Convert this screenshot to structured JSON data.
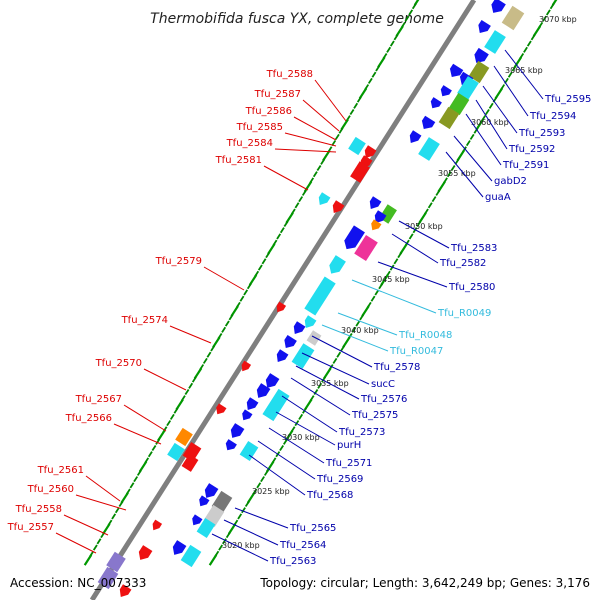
{
  "title": "Thermobifida fusca YX, complete genome",
  "accession": "Accession: NC_007333",
  "topology": "Topology: circular; Length: 3,642,249 bp; Genes: 3,176",
  "colors": {
    "backbone": "#7f7f7f",
    "tick_major": "#009900",
    "tick_minor": "#008800",
    "reverse_label": "#dd0000",
    "forward_label": "#0000aa",
    "rna_label": "#33bbdd",
    "cds_dark": "#1111ee",
    "cds_cyan": "#22ddee",
    "cds_red": "#ee1111",
    "cds_green": "#44bb22",
    "cds_olive": "#889922",
    "cds_khaki": "#c8bb88",
    "cds_pink": "#ee3399",
    "cds_orange": "#ff8800",
    "cds_gray": "#777777",
    "cds_lightgray": "#cccccc",
    "cds_lavender": "#8877cc"
  },
  "kbp_ticks": [
    {
      "label": "3070 kbp"
    },
    {
      "label": "3065 kbp"
    },
    {
      "label": "3060 kbp"
    },
    {
      "label": "3055 kbp"
    },
    {
      "label": "3050 kbp"
    },
    {
      "label": "3045 kbp"
    },
    {
      "label": "3040 kbp"
    },
    {
      "label": "3035 kbp"
    },
    {
      "label": "3030 kbp"
    },
    {
      "label": "3025 kbp"
    },
    {
      "label": "3020 kbp"
    }
  ],
  "reverse_genes": [
    {
      "label": "Tfu_2588"
    },
    {
      "label": "Tfu_2587"
    },
    {
      "label": "Tfu_2586"
    },
    {
      "label": "Tfu_2585"
    },
    {
      "label": "Tfu_2584"
    },
    {
      "label": "Tfu_2581"
    },
    {
      "label": "Tfu_2579"
    },
    {
      "label": "Tfu_2574"
    },
    {
      "label": "Tfu_2570"
    },
    {
      "label": "Tfu_2567"
    },
    {
      "label": "Tfu_2566"
    },
    {
      "label": "Tfu_2561"
    },
    {
      "label": "Tfu_2560"
    },
    {
      "label": "Tfu_2558"
    },
    {
      "label": "Tfu_2557"
    }
  ],
  "forward_genes": [
    {
      "label": "Tfu_2595"
    },
    {
      "label": "Tfu_2594"
    },
    {
      "label": "Tfu_2593"
    },
    {
      "label": "Tfu_2592"
    },
    {
      "label": "Tfu_2591"
    },
    {
      "label": "gabD2"
    },
    {
      "label": "guaA"
    },
    {
      "label": "Tfu_2583"
    },
    {
      "label": "Tfu_2582"
    },
    {
      "label": "Tfu_2580"
    },
    {
      "label": "Tfu_R0049",
      "rna": true
    },
    {
      "label": "Tfu_R0048",
      "rna": true
    },
    {
      "label": "Tfu_R0047",
      "rna": true
    },
    {
      "label": "Tfu_2578"
    },
    {
      "label": "sucC"
    },
    {
      "label": "Tfu_2576"
    },
    {
      "label": "Tfu_2575"
    },
    {
      "label": "Tfu_2573"
    },
    {
      "label": "purH"
    },
    {
      "label": "Tfu_2571"
    },
    {
      "label": "Tfu_2569"
    },
    {
      "label": "Tfu_2568"
    },
    {
      "label": "Tfu_2565"
    },
    {
      "label": "Tfu_2564"
    },
    {
      "label": "Tfu_2563"
    }
  ]
}
